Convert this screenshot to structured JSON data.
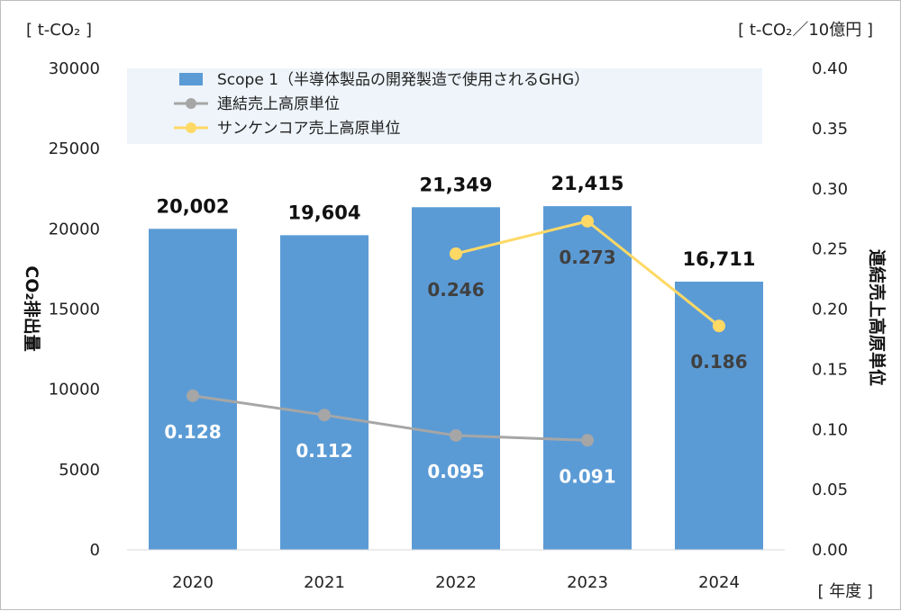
{
  "chart_data": {
    "type": "bar",
    "categories": [
      "2020",
      "2021",
      "2022",
      "2023",
      "2024"
    ],
    "bar_series": {
      "name": "Scope 1（半導体製品の開発製造で使用されるGHG）",
      "values": [
        20002,
        19604,
        21349,
        21415,
        16711
      ],
      "labels": [
        "20,002",
        "19,604",
        "21,349",
        "21,415",
        "16,711"
      ],
      "color": "#5b9bd5"
    },
    "line_series": [
      {
        "name": "連結売上高原単位",
        "x": [
          "2020",
          "2021",
          "2022",
          "2023"
        ],
        "values": [
          0.128,
          0.112,
          0.095,
          0.091
        ],
        "labels": [
          "0.128",
          "0.112",
          "0.095",
          "0.091"
        ],
        "color": "#a6a6a6",
        "label_color": "#ffffff"
      },
      {
        "name": "サンケンコア売上高原単位",
        "x": [
          "2022",
          "2023",
          "2024"
        ],
        "values": [
          0.246,
          0.273,
          0.186
        ],
        "labels": [
          "0.246",
          "0.273",
          "0.186"
        ],
        "color": "#ffd966",
        "label_color": "#404040"
      }
    ],
    "y_left": {
      "unit": "[ t-CO₂ ]",
      "label": "CO₂排出量",
      "min": 0,
      "max": 30000,
      "ticks": [
        "0",
        "5000",
        "10000",
        "15000",
        "20000",
        "25000",
        "30000"
      ]
    },
    "y_right": {
      "unit": "[ t-CO₂／10億円 ]",
      "label": "連結売上高原単位",
      "min": 0,
      "max": 0.4,
      "ticks": [
        "0.00",
        "0.05",
        "0.10",
        "0.15",
        "0.20",
        "0.25",
        "0.30",
        "0.35",
        "0.40"
      ]
    },
    "x_unit": "[ 年度 ]",
    "legend_position": "top",
    "grid": false
  }
}
